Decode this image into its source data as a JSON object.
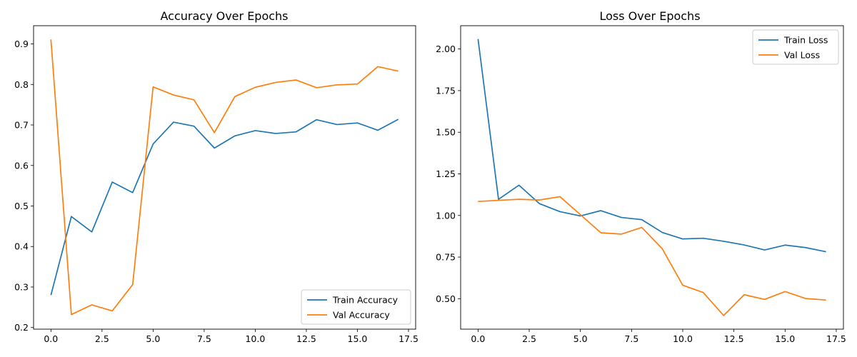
{
  "colors": {
    "train": "#1f77b4",
    "val": "#ff7f0e"
  },
  "chart_data": [
    {
      "type": "line",
      "title": "Accuracy Over Epochs",
      "xlabel": "",
      "ylabel": "",
      "xlim": [
        -0.85,
        17.85
      ],
      "ylim": [
        0.196,
        0.945
      ],
      "xticks": [
        0,
        2.5,
        5,
        7.5,
        10,
        12.5,
        15,
        17.5
      ],
      "xtick_labels": [
        "0.0",
        "2.5",
        "5.0",
        "7.5",
        "10.0",
        "12.5",
        "15.0",
        "17.5"
      ],
      "yticks": [
        0.2,
        0.3,
        0.4,
        0.5,
        0.6,
        0.7,
        0.8,
        0.9
      ],
      "ytick_labels": [
        "0.2",
        "0.3",
        "0.4",
        "0.5",
        "0.6",
        "0.7",
        "0.8",
        "0.9"
      ],
      "legend": "lower-right",
      "grid": false,
      "x": [
        0,
        1,
        2,
        3,
        4,
        5,
        6,
        7,
        8,
        9,
        10,
        11,
        12,
        13,
        14,
        15,
        16,
        17
      ],
      "series": [
        {
          "name": "Train Accuracy",
          "color": "#1f77b4",
          "values": [
            0.28,
            0.474,
            0.436,
            0.559,
            0.533,
            0.653,
            0.707,
            0.697,
            0.643,
            0.673,
            0.686,
            0.679,
            0.683,
            0.713,
            0.701,
            0.705,
            0.687,
            0.714
          ]
        },
        {
          "name": "Val Accuracy",
          "color": "#ff7f0e",
          "values": [
            0.911,
            0.232,
            0.256,
            0.241,
            0.306,
            0.794,
            0.774,
            0.762,
            0.681,
            0.77,
            0.793,
            0.805,
            0.811,
            0.792,
            0.799,
            0.801,
            0.844,
            0.833
          ]
        }
      ]
    },
    {
      "type": "line",
      "title": "Loss Over Epochs",
      "xlabel": "",
      "ylabel": "",
      "xlim": [
        -0.85,
        17.85
      ],
      "ylim": [
        0.317,
        2.14
      ],
      "xticks": [
        0,
        2.5,
        5,
        7.5,
        10,
        12.5,
        15,
        17.5
      ],
      "xtick_labels": [
        "0.0",
        "2.5",
        "5.0",
        "7.5",
        "10.0",
        "12.5",
        "15.0",
        "17.5"
      ],
      "yticks": [
        0.5,
        0.75,
        1.0,
        1.25,
        1.5,
        1.75,
        2.0
      ],
      "ytick_labels": [
        "0.50",
        "0.75",
        "1.00",
        "1.25",
        "1.50",
        "1.75",
        "2.00"
      ],
      "legend": "top-right",
      "grid": false,
      "x": [
        0,
        1,
        2,
        3,
        4,
        5,
        6,
        7,
        8,
        9,
        10,
        11,
        12,
        13,
        14,
        15,
        16,
        17
      ],
      "series": [
        {
          "name": "Train Loss",
          "color": "#1f77b4",
          "values": [
            2.06,
            1.097,
            1.182,
            1.071,
            1.023,
            0.997,
            1.029,
            0.988,
            0.975,
            0.898,
            0.859,
            0.863,
            0.845,
            0.823,
            0.793,
            0.822,
            0.807,
            0.782
          ]
        },
        {
          "name": "Val Loss",
          "color": "#ff7f0e",
          "values": [
            1.084,
            1.091,
            1.097,
            1.093,
            1.113,
            1.005,
            0.896,
            0.888,
            0.928,
            0.8,
            0.581,
            0.537,
            0.399,
            0.524,
            0.496,
            0.543,
            0.501,
            0.492
          ]
        }
      ]
    }
  ]
}
